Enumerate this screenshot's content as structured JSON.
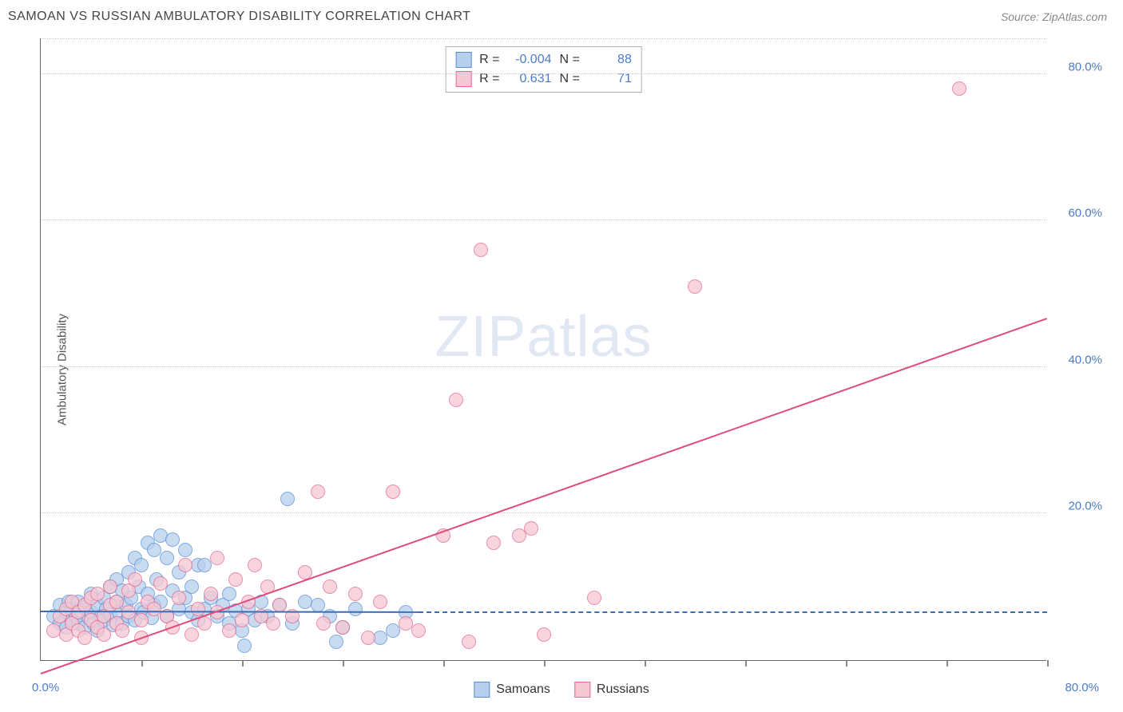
{
  "title": "SAMOAN VS RUSSIAN AMBULATORY DISABILITY CORRELATION CHART",
  "source": "Source: ZipAtlas.com",
  "y_axis_label": "Ambulatory Disability",
  "watermark_bold": "ZIP",
  "watermark_light": "atlas",
  "chart": {
    "type": "scatter",
    "xlim": [
      0,
      80
    ],
    "ylim": [
      0,
      85
    ],
    "x_origin_label": "0.0%",
    "x_max_label": "80.0%",
    "y_ticks": [
      {
        "v": 20,
        "label": "20.0%"
      },
      {
        "v": 40,
        "label": "40.0%"
      },
      {
        "v": 60,
        "label": "60.0%"
      },
      {
        "v": 80,
        "label": "80.0%"
      }
    ],
    "x_tick_step": 8,
    "grid_color": "#cccccc",
    "background_color": "#ffffff",
    "marker_radius": 9,
    "marker_stroke_width": 1.5,
    "series": [
      {
        "name": "Samoans",
        "fill": "#b6cfec",
        "stroke": "#5a8fd6",
        "r_label": "R =",
        "r_value": "-0.004",
        "n_label": "N =",
        "n_value": "88",
        "trend": {
          "x1": 0,
          "y1": 6.5,
          "x2": 30,
          "y2": 6.4,
          "dash_to_x": 80,
          "color": "#3a6db5"
        },
        "points": [
          [
            1,
            6
          ],
          [
            1.5,
            5
          ],
          [
            1.5,
            7.5
          ],
          [
            2,
            4.5
          ],
          [
            2,
            6.5
          ],
          [
            2.2,
            8
          ],
          [
            2.5,
            5.5
          ],
          [
            2.5,
            7
          ],
          [
            2.8,
            6
          ],
          [
            3,
            5
          ],
          [
            3,
            8
          ],
          [
            3.2,
            6.8
          ],
          [
            3.5,
            4.5
          ],
          [
            3.5,
            7.2
          ],
          [
            3.8,
            5.8
          ],
          [
            4,
            6.5
          ],
          [
            4,
            9
          ],
          [
            4.2,
            5
          ],
          [
            4.5,
            7.5
          ],
          [
            4.5,
            4
          ],
          [
            4.8,
            6
          ],
          [
            5,
            8.5
          ],
          [
            5,
            5.5
          ],
          [
            5.2,
            7
          ],
          [
            5.5,
            10
          ],
          [
            5.5,
            6.2
          ],
          [
            5.8,
            4.8
          ],
          [
            6,
            8
          ],
          [
            6,
            11
          ],
          [
            6.2,
            6.5
          ],
          [
            6.5,
            9.5
          ],
          [
            6.5,
            5
          ],
          [
            6.8,
            7.5
          ],
          [
            7,
            12
          ],
          [
            7,
            6
          ],
          [
            7.2,
            8.5
          ],
          [
            7.5,
            14
          ],
          [
            7.5,
            5.5
          ],
          [
            7.8,
            10
          ],
          [
            8,
            7
          ],
          [
            8,
            13
          ],
          [
            8.2,
            6.5
          ],
          [
            8.5,
            16
          ],
          [
            8.5,
            9
          ],
          [
            8.8,
            5.8
          ],
          [
            9,
            15
          ],
          [
            9,
            7.5
          ],
          [
            9.2,
            11
          ],
          [
            9.5,
            8
          ],
          [
            9.5,
            17
          ],
          [
            10,
            6
          ],
          [
            10,
            14
          ],
          [
            10.5,
            9.5
          ],
          [
            10.5,
            16.5
          ],
          [
            11,
            7
          ],
          [
            11,
            12
          ],
          [
            11.5,
            8.5
          ],
          [
            11.5,
            15
          ],
          [
            12,
            6.5
          ],
          [
            12,
            10
          ],
          [
            12.5,
            5.5
          ],
          [
            12.5,
            13
          ],
          [
            13,
            7
          ],
          [
            13,
            13
          ],
          [
            13.5,
            8.5
          ],
          [
            14,
            6
          ],
          [
            14.5,
            7.5
          ],
          [
            15,
            5
          ],
          [
            15,
            9
          ],
          [
            15.5,
            6.8
          ],
          [
            16,
            4
          ],
          [
            16.2,
            2
          ],
          [
            16.5,
            7
          ],
          [
            17,
            5.5
          ],
          [
            17.5,
            8
          ],
          [
            18,
            6
          ],
          [
            19,
            7.5
          ],
          [
            19.6,
            22
          ],
          [
            20,
            5
          ],
          [
            21,
            8
          ],
          [
            22,
            7.5
          ],
          [
            23,
            6
          ],
          [
            23.5,
            2.5
          ],
          [
            24,
            4.5
          ],
          [
            25,
            7
          ],
          [
            27,
            3
          ],
          [
            28,
            4
          ],
          [
            29,
            6.5
          ]
        ]
      },
      {
        "name": "Russians",
        "fill": "#f6c7d4",
        "stroke": "#e56a8f",
        "r_label": "R =",
        "r_value": "0.631",
        "n_label": "N =",
        "n_value": "71",
        "trend": {
          "x1": 0,
          "y1": -2,
          "x2": 80,
          "y2": 46.5,
          "color": "#e04c7b"
        },
        "points": [
          [
            1,
            4
          ],
          [
            1.5,
            6
          ],
          [
            2,
            3.5
          ],
          [
            2,
            7
          ],
          [
            2.5,
            5
          ],
          [
            2.5,
            8
          ],
          [
            3,
            4
          ],
          [
            3,
            6.5
          ],
          [
            3.5,
            3
          ],
          [
            3.5,
            7.5
          ],
          [
            4,
            5.5
          ],
          [
            4,
            8.5
          ],
          [
            4.5,
            4.5
          ],
          [
            4.5,
            9
          ],
          [
            5,
            6
          ],
          [
            5,
            3.5
          ],
          [
            5.5,
            7.5
          ],
          [
            5.5,
            10
          ],
          [
            6,
            5
          ],
          [
            6,
            8
          ],
          [
            6.5,
            4
          ],
          [
            7,
            9.5
          ],
          [
            7,
            6.5
          ],
          [
            7.5,
            11
          ],
          [
            8,
            5.5
          ],
          [
            8,
            3
          ],
          [
            8.5,
            8
          ],
          [
            9,
            7
          ],
          [
            9.5,
            10.5
          ],
          [
            10,
            6
          ],
          [
            10.5,
            4.5
          ],
          [
            11,
            8.5
          ],
          [
            11.5,
            13
          ],
          [
            12,
            3.5
          ],
          [
            12.5,
            7
          ],
          [
            13,
            5
          ],
          [
            13.5,
            9
          ],
          [
            14,
            6.5
          ],
          [
            14,
            14
          ],
          [
            15,
            4
          ],
          [
            15.5,
            11
          ],
          [
            16,
            5.5
          ],
          [
            16.5,
            8
          ],
          [
            17,
            13
          ],
          [
            17.5,
            6
          ],
          [
            18,
            10
          ],
          [
            18.5,
            5
          ],
          [
            19,
            7.5
          ],
          [
            20,
            6
          ],
          [
            21,
            12
          ],
          [
            22,
            23
          ],
          [
            22.5,
            5
          ],
          [
            23,
            10
          ],
          [
            24,
            4.5
          ],
          [
            25,
            9
          ],
          [
            26,
            3
          ],
          [
            27,
            8
          ],
          [
            28,
            23
          ],
          [
            29,
            5
          ],
          [
            30,
            4
          ],
          [
            32,
            17
          ],
          [
            33,
            35.5
          ],
          [
            34,
            2.5
          ],
          [
            35,
            56
          ],
          [
            36,
            16
          ],
          [
            38,
            17
          ],
          [
            39,
            18
          ],
          [
            40,
            3.5
          ],
          [
            44,
            8.5
          ],
          [
            52,
            51
          ],
          [
            73,
            78
          ]
        ]
      }
    ]
  }
}
